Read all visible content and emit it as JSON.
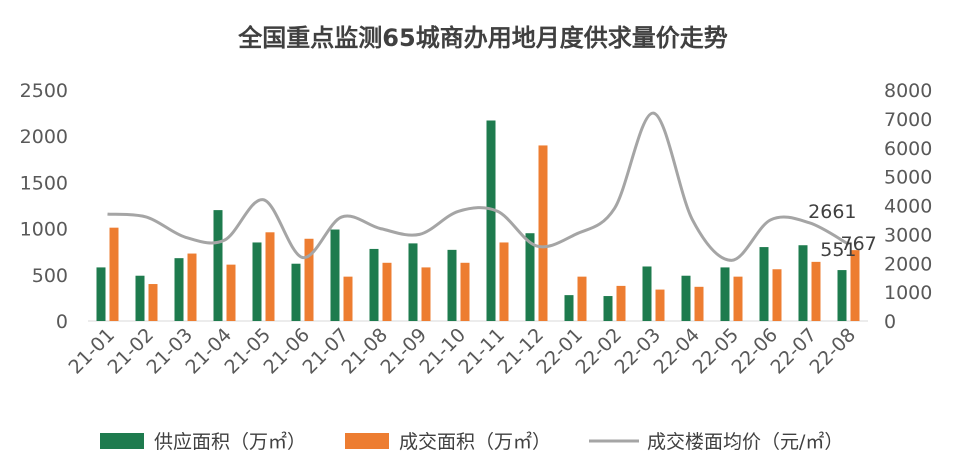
{
  "chart_data": {
    "type": "bar",
    "title": "全国重点监测65城商办用地月度供求量价走势",
    "categories": [
      "21-01",
      "21-02",
      "21-03",
      "21-04",
      "21-05",
      "21-06",
      "21-07",
      "21-08",
      "21-09",
      "21-10",
      "21-11",
      "21-12",
      "22-01",
      "22-02",
      "22-03",
      "22-04",
      "22-05",
      "22-06",
      "22-07",
      "22-08"
    ],
    "series": [
      {
        "name": "供应面积（万㎡）",
        "type": "bar",
        "axis": "left",
        "color": "#1e7b4e",
        "values": [
          580,
          490,
          680,
          1200,
          850,
          620,
          990,
          780,
          840,
          770,
          2170,
          950,
          280,
          270,
          590,
          490,
          580,
          800,
          820,
          551
        ]
      },
      {
        "name": "成交面积（万㎡）",
        "type": "bar",
        "axis": "left",
        "color": "#ed7d31",
        "values": [
          1010,
          400,
          730,
          610,
          960,
          890,
          480,
          630,
          580,
          630,
          850,
          1900,
          480,
          380,
          340,
          370,
          480,
          560,
          640,
          767
        ]
      },
      {
        "name": "成交楼面均价（元/㎡）",
        "type": "line",
        "axis": "right",
        "color": "#a5a5a5",
        "values": [
          3700,
          3600,
          2900,
          2800,
          4200,
          2200,
          3600,
          3200,
          3000,
          3800,
          3800,
          2600,
          3000,
          3900,
          7200,
          3500,
          2100,
          3500,
          3400,
          2661
        ]
      }
    ],
    "y_left": {
      "min": 0,
      "max": 2500,
      "step": 500,
      "ticks": [
        "0",
        "500",
        "1000",
        "1500",
        "2000",
        "2500"
      ]
    },
    "y_right": {
      "min": 0,
      "max": 8000,
      "step": 1000,
      "ticks": [
        "0",
        "1000",
        "2000",
        "3000",
        "4000",
        "5000",
        "6000",
        "7000",
        "8000"
      ]
    },
    "data_labels": [
      {
        "series": 2,
        "index": 19,
        "text": "2661"
      },
      {
        "series": 0,
        "index": 19,
        "text": "551"
      },
      {
        "series": 1,
        "index": 19,
        "text": "767"
      }
    ],
    "legend": "bottom",
    "grid": false
  }
}
